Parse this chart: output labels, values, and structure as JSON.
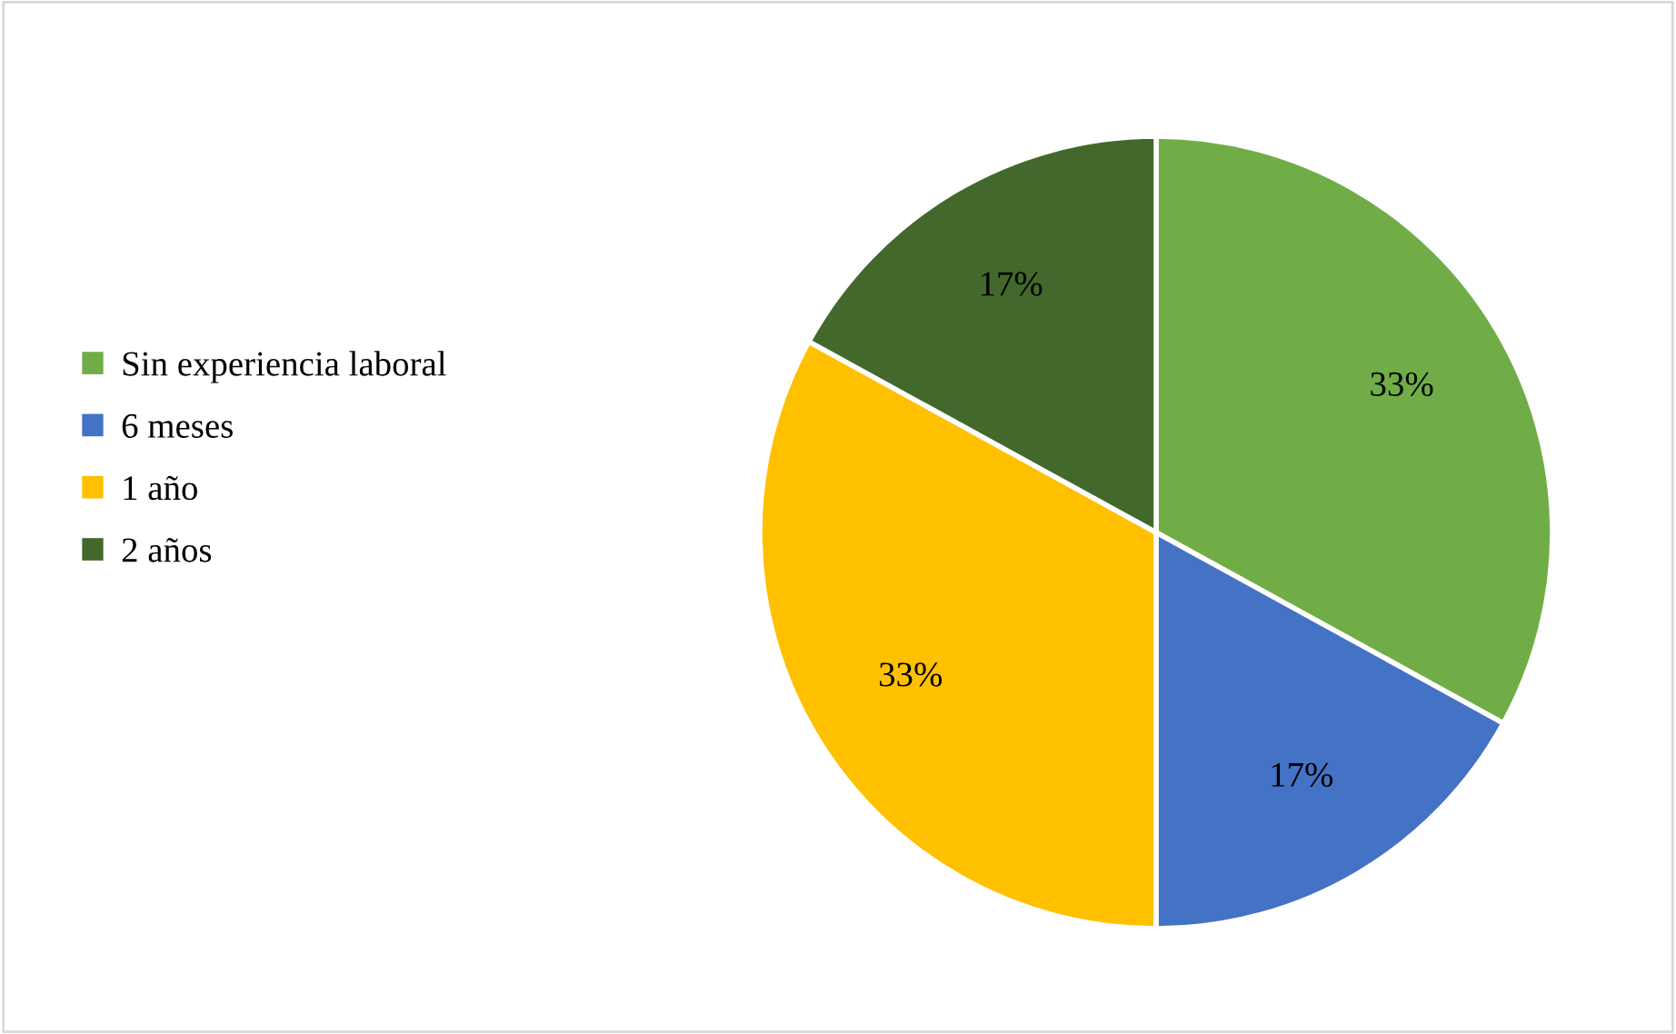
{
  "chart_data": {
    "type": "pie",
    "categories": [
      "Sin experiencia laboral",
      "6 meses",
      "1 año",
      "2 años"
    ],
    "values": [
      33,
      17,
      33,
      17
    ],
    "colors": [
      "#70ad47",
      "#4472c4",
      "#ffc000",
      "#43682b"
    ],
    "value_labels": [
      "33%",
      "17%",
      "33%",
      "17%"
    ],
    "legend": "left"
  }
}
